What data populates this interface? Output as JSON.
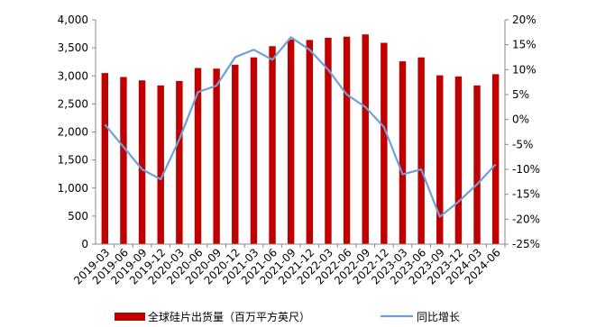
{
  "chart_data": {
    "type": "bar",
    "categories": [
      "2019-03",
      "2019-06",
      "2019-09",
      "2019-12",
      "2020-03",
      "2020-06",
      "2020-09",
      "2020-12",
      "2021-03",
      "2021-06",
      "2021-09",
      "2021-12",
      "2022-03",
      "2022-06",
      "2022-09",
      "2022-12",
      "2023-03",
      "2023-06",
      "2023-09",
      "2023-12",
      "2024-03",
      "2024-06"
    ],
    "series": [
      {
        "name": "全球硅片出货量（百万平方英尺）",
        "type": "bar",
        "axis": "left",
        "color": "#C00000",
        "values": [
          3050,
          2980,
          2920,
          2830,
          2910,
          3140,
          3130,
          3200,
          3330,
          3530,
          3650,
          3640,
          3680,
          3700,
          3740,
          3590,
          3260,
          3330,
          3010,
          2990,
          2830,
          3030
        ]
      },
      {
        "name": "同比增长",
        "type": "line",
        "axis": "right",
        "color": "#6F9FD8",
        "values": [
          -1,
          -5.5,
          -10,
          -12,
          -4,
          5.5,
          6.8,
          12.5,
          14,
          12,
          16.5,
          14,
          10,
          5,
          2.5,
          -1.5,
          -11,
          -10,
          -19.5,
          -16.5,
          -13,
          -9
        ]
      }
    ],
    "y_left": {
      "ylim": [
        0,
        4000
      ],
      "ticks": [
        "0",
        "500",
        "1,000",
        "1,500",
        "2,000",
        "2,500",
        "3,000",
        "3,500",
        "4,000"
      ],
      "tick_values": [
        0,
        500,
        1000,
        1500,
        2000,
        2500,
        3000,
        3500,
        4000
      ]
    },
    "y_right": {
      "ylim": [
        -25,
        20
      ],
      "ticks": [
        "-25%",
        "-20%",
        "-15%",
        "-10%",
        "-5%",
        "0%",
        "5%",
        "10%",
        "15%",
        "20%"
      ],
      "tick_values": [
        -25,
        -20,
        -15,
        -10,
        -5,
        0,
        5,
        10,
        15,
        20
      ]
    },
    "grid": false,
    "legend_position": "bottom"
  }
}
